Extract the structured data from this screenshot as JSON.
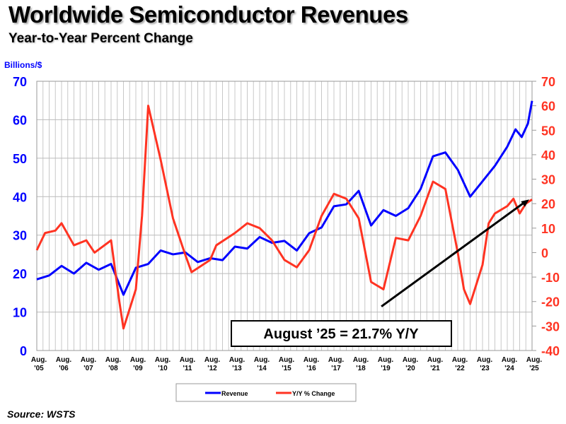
{
  "chart_data": {
    "type": "line",
    "title": "Worldwide Semiconductor Revenues",
    "subtitle": "Year-to-Year Percent Change",
    "ylabel_left": "Billions/$",
    "ylim_left": [
      0,
      70
    ],
    "ylim_right": [
      -40,
      70
    ],
    "yticks_left": [
      0,
      10,
      20,
      30,
      40,
      50,
      60,
      70
    ],
    "yticks_right": [
      -40,
      -30,
      -20,
      -10,
      0,
      10,
      20,
      30,
      40,
      50,
      60,
      70
    ],
    "xticks": [
      "Aug. '05",
      "Aug. '06",
      "Aug. '07",
      "Aug. '08",
      "Aug. '09",
      "Aug. '10",
      "Aug. '11",
      "Aug. '12",
      "Aug. '13",
      "Aug. '14",
      "Aug. '15",
      "Aug. '16",
      "Aug. '17",
      "Aug. '18",
      "Aug. '19",
      "Aug. '20",
      "Aug. '21",
      "Aug. '22",
      "Aug. '23",
      "Aug. '24",
      "Aug. '25"
    ],
    "grid": true,
    "legend_position": "bottom",
    "annotation": "August ’25 = 21.7% Y/Y",
    "arrow": {
      "from": [
        "2019-07",
        -22
      ],
      "to": [
        "2025-08",
        21.7
      ],
      "axis": "right"
    },
    "series": [
      {
        "name": "Revenue",
        "axis": "left",
        "color": "#0000ff",
        "points": [
          [
            "2005-08",
            18.5
          ],
          [
            "2006-02",
            19.5
          ],
          [
            "2006-08",
            22
          ],
          [
            "2007-02",
            20
          ],
          [
            "2007-08",
            22.8
          ],
          [
            "2008-02",
            21
          ],
          [
            "2008-08",
            22.5
          ],
          [
            "2009-02",
            14.5
          ],
          [
            "2009-08",
            21.5
          ],
          [
            "2010-02",
            22.5
          ],
          [
            "2010-08",
            26
          ],
          [
            "2011-02",
            25
          ],
          [
            "2011-08",
            25.5
          ],
          [
            "2012-02",
            23
          ],
          [
            "2012-08",
            24
          ],
          [
            "2013-02",
            23.5
          ],
          [
            "2013-08",
            27
          ],
          [
            "2014-02",
            26.5
          ],
          [
            "2014-08",
            29.5
          ],
          [
            "2015-02",
            28
          ],
          [
            "2015-08",
            28.5
          ],
          [
            "2016-02",
            26
          ],
          [
            "2016-08",
            30.5
          ],
          [
            "2017-02",
            32
          ],
          [
            "2017-08",
            37.5
          ],
          [
            "2018-02",
            38
          ],
          [
            "2018-08",
            41.5
          ],
          [
            "2019-02",
            32.5
          ],
          [
            "2019-08",
            36.5
          ],
          [
            "2020-02",
            35
          ],
          [
            "2020-08",
            37
          ],
          [
            "2021-02",
            42
          ],
          [
            "2021-08",
            50.5
          ],
          [
            "2022-02",
            51.5
          ],
          [
            "2022-08",
            47
          ],
          [
            "2023-02",
            40
          ],
          [
            "2023-08",
            44
          ],
          [
            "2024-02",
            48
          ],
          [
            "2024-08",
            53
          ],
          [
            "2024-12",
            57.5
          ],
          [
            "2025-03",
            55.5
          ],
          [
            "2025-06",
            59
          ],
          [
            "2025-08",
            64.9
          ]
        ]
      },
      {
        "name": "Y/Y % Change",
        "axis": "right",
        "color": "#ff3322",
        "points": [
          [
            "2005-08",
            1
          ],
          [
            "2005-12",
            8
          ],
          [
            "2006-05",
            9
          ],
          [
            "2006-08",
            12
          ],
          [
            "2007-02",
            3
          ],
          [
            "2007-08",
            5
          ],
          [
            "2007-12",
            0
          ],
          [
            "2008-08",
            5
          ],
          [
            "2008-12",
            -20
          ],
          [
            "2009-02",
            -31
          ],
          [
            "2009-08",
            -15
          ],
          [
            "2009-11",
            15
          ],
          [
            "2010-02",
            60
          ],
          [
            "2010-08",
            38
          ],
          [
            "2011-02",
            14
          ],
          [
            "2011-08",
            -1
          ],
          [
            "2011-11",
            -8
          ],
          [
            "2012-08",
            -3
          ],
          [
            "2012-11",
            3
          ],
          [
            "2013-08",
            8
          ],
          [
            "2014-02",
            12
          ],
          [
            "2014-08",
            10
          ],
          [
            "2015-02",
            5
          ],
          [
            "2015-08",
            -3
          ],
          [
            "2016-02",
            -6
          ],
          [
            "2016-08",
            1
          ],
          [
            "2017-02",
            15
          ],
          [
            "2017-08",
            24
          ],
          [
            "2018-02",
            22
          ],
          [
            "2018-08",
            14
          ],
          [
            "2019-02",
            -12
          ],
          [
            "2019-08",
            -15
          ],
          [
            "2020-02",
            6
          ],
          [
            "2020-08",
            5
          ],
          [
            "2021-02",
            15
          ],
          [
            "2021-08",
            29
          ],
          [
            "2022-02",
            26
          ],
          [
            "2022-08",
            0
          ],
          [
            "2022-11",
            -15
          ],
          [
            "2023-02",
            -21
          ],
          [
            "2023-08",
            -5
          ],
          [
            "2023-11",
            12
          ],
          [
            "2024-02",
            16
          ],
          [
            "2024-08",
            19
          ],
          [
            "2024-11",
            22
          ],
          [
            "2025-02",
            16
          ],
          [
            "2025-05",
            20
          ],
          [
            "2025-08",
            21.7
          ]
        ]
      }
    ]
  },
  "source": "Source: WSTS"
}
